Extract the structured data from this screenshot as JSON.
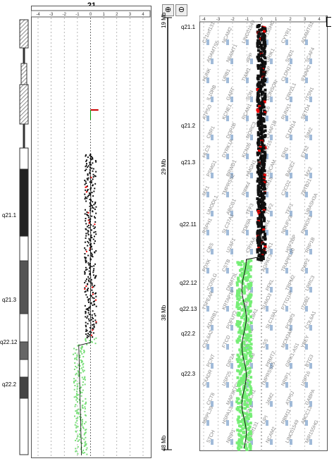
{
  "chromosome_label": "21",
  "zoom": {
    "in_icon": "zoom-in-icon",
    "out_icon": "zoom-out-icon",
    "in_glyph": "⊕",
    "out_glyph": "⊖"
  },
  "left_scale_ticks": [
    "-4",
    "-3",
    "-2",
    "-1",
    "0",
    "1",
    "2",
    "3",
    "4"
  ],
  "right_scale_ticks": [
    "-4",
    "-3",
    "-2",
    "-1",
    "0",
    "1",
    "2",
    "3",
    "4"
  ],
  "left_bands": [
    "q21.1",
    "q21.3",
    "q22.12",
    "q22.2"
  ],
  "right_bands": [
    "q21.1",
    "q21.2",
    "q21.3",
    "q22.11",
    "q22.12",
    "q22.13",
    "q22.2",
    "q22.3"
  ],
  "mb_labels": [
    "19 Mb",
    "29 Mb",
    "38 Mb",
    "48 Mb"
  ],
  "genes": [
    "C21orf131",
    "NCAM2",
    "LINC01549",
    "MIR155HG",
    "CYYR1",
    "ADAMTS1",
    "ADAMTS5",
    "N6AMT1",
    "APP",
    "GRIK1",
    "SOD1",
    "SCAF4",
    "HUNK",
    "URB1",
    "TIAM1",
    "KRTAP",
    "CLDN17",
    "IFNAR2",
    "IL10RB",
    "GART",
    "SON",
    "DONSON",
    "CRYZL1",
    "ITSN1",
    "ATP5O",
    "KCNE1",
    "RCAN1",
    "CLIC6",
    "RUNX1",
    "SETD4",
    "CBR1",
    "DOP1B",
    "MORC3",
    "CHAF1B",
    "CLDN14",
    "SIM2",
    "HLCS",
    "DYRK1A",
    "KCNJ6",
    "KCNJ15",
    "ERG",
    "ETS2",
    "PSMG1",
    "BRWD1",
    "HMGN1",
    "DSCAM",
    "BACE2",
    "MX2",
    "MX1",
    "TMPRSS2",
    "RIPK4",
    "PRDM15",
    "C2CD2",
    "ZBTB21",
    "UMODL1",
    "ABCG1",
    "TFF3",
    "TFF2",
    "TFF1",
    "UBASH3A",
    "RSPH1",
    "SLC37A1",
    "PDE9A",
    "WDR4",
    "NDUFV3",
    "PKNOX1",
    "CBS",
    "U2AF1",
    "CRYAA",
    "SIK1",
    "HSF2BP",
    "RRP1B",
    "PDXK",
    "CSTB",
    "RRP1",
    "AGPAT3",
    "TRAPPC10",
    "PWP2",
    "ICOSLG",
    "DNMT3L",
    "AIRE",
    "PFKL",
    "TRPM2",
    "LRRC3",
    "TSPEAR",
    "KRTAP10",
    "UBE2G2",
    "SUMO3",
    "PTTG1IP",
    "ITGB2",
    "ADARB1",
    "POFUT2",
    "COL18A1",
    "SLC19A1",
    "PCBP3",
    "COL6A1",
    "COL6A2",
    "FTCD",
    "SPATC1L",
    "LSS",
    "MCM3AP",
    "YBEY",
    "PCNT",
    "DIP2A",
    "S100B",
    "PRMT2",
    "GRIK1-AS1",
    "BTG3",
    "CXADR",
    "USP25",
    "CHODL",
    "TMPRSS15",
    "NRIP1",
    "USP16",
    "CCT8",
    "MAP3K7CL",
    "BACH1",
    "JAM2",
    "ATP5J",
    "GABPA",
    "MRPL39",
    "HSPA13",
    "SAMSN1",
    "LIPI",
    "RBM11",
    "ABCC13",
    "STCH",
    "NRIP1"
  ]
}
